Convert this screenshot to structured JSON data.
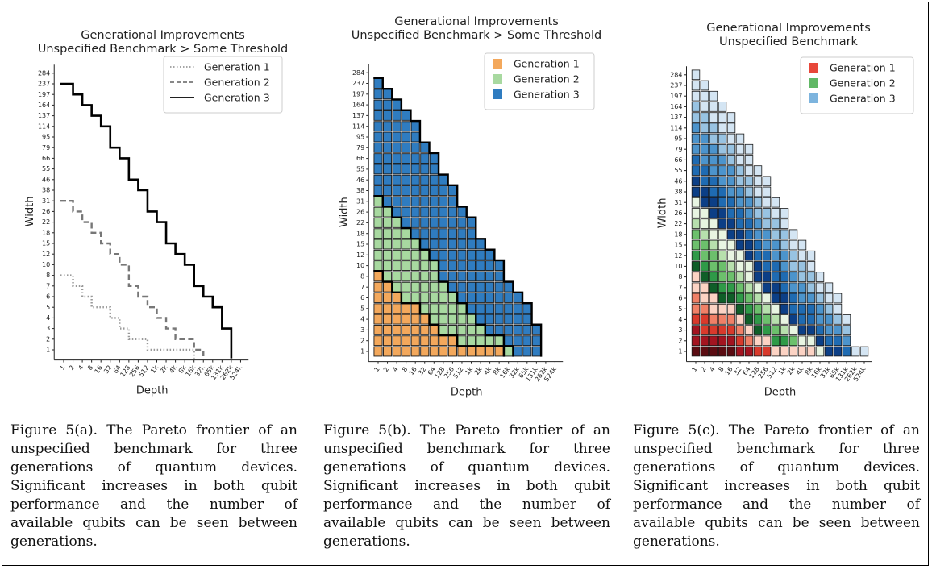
{
  "chart_data": [
    {
      "type": "line",
      "title": "Generational Improvements\nUnspecified Benchmark > Some Threshold",
      "xlabel": "Depth",
      "ylabel": "Width",
      "x_ticks": [
        "1",
        "2",
        "4",
        "8",
        "16",
        "32",
        "64",
        "128",
        "256",
        "512",
        "1k",
        "2k",
        "4k",
        "8k",
        "16k",
        "32k",
        "65k",
        "131k",
        "262k",
        "524k"
      ],
      "y_ticks": [
        "1",
        "2",
        "3",
        "4",
        "5",
        "6",
        "7",
        "8",
        "10",
        "12",
        "15",
        "18",
        "22",
        "26",
        "31",
        "38",
        "46",
        "55",
        "66",
        "79",
        "95",
        "114",
        "137",
        "164",
        "197",
        "237",
        "284"
      ],
      "legend_position": "top-right",
      "series": [
        {
          "name": "Generation 1",
          "style": "dotted",
          "color": "#999999",
          "frontier": [
            7,
            6,
            5,
            4,
            4,
            3,
            2,
            1,
            1,
            0,
            0,
            0,
            0,
            0,
            -1,
            -1,
            -1,
            -1,
            -1,
            -1
          ]
        },
        {
          "name": "Generation 2",
          "style": "dashed",
          "color": "#777777",
          "frontier": [
            14,
            13,
            12,
            11,
            10,
            9,
            8,
            6,
            5,
            4,
            3,
            2,
            1,
            1,
            0,
            -1,
            -1,
            -1,
            -1,
            -1
          ]
        },
        {
          "name": "Generation 3",
          "style": "solid",
          "color": "#000000",
          "frontier": [
            25,
            24,
            23,
            22,
            21,
            19,
            18,
            16,
            15,
            13,
            12,
            10,
            9,
            8,
            6,
            5,
            4,
            2,
            -1,
            -1
          ]
        }
      ]
    },
    {
      "type": "heatmap",
      "title": "Generational Improvements\nUnspecified Benchmark > Some Threshold",
      "xlabel": "Depth",
      "ylabel": "Width",
      "legend_position": "top-right",
      "series": [
        {
          "name": "Generation 1",
          "color": "#f3a85c"
        },
        {
          "name": "Generation 2",
          "color": "#a8d9a0"
        },
        {
          "name": "Generation 3",
          "color": "#2f7cc0"
        }
      ]
    },
    {
      "type": "heatmap",
      "title": "Generational Improvements\nUnspecified Benchmark",
      "xlabel": "Depth",
      "ylabel": "Width",
      "legend_position": "top-right",
      "series": [
        {
          "name": "Generation 1",
          "color": "#e8473a"
        },
        {
          "name": "Generation 2",
          "color": "#61b866"
        },
        {
          "name": "Generation 3",
          "color": "#7db4de"
        }
      ]
    }
  ],
  "captions": [
    "Figure 5(a).   The Pareto frontier of an unspecified benchmark for three generations of quantum devices. Significant increases in both qubit performance and the number of available qubits can be seen between generations.",
    "Figure 5(b).   The Pareto frontier of an unspecified benchmark for three generations of quantum devices. Significant increases in both qubit performance and the number of available qubits can be seen between generations.",
    "Figure 5(c).   The Pareto frontier of an unspecified benchmark for three generations of quantum devices. Significant increases in both qubit performance and the number of available qubits can be seen between generations."
  ]
}
